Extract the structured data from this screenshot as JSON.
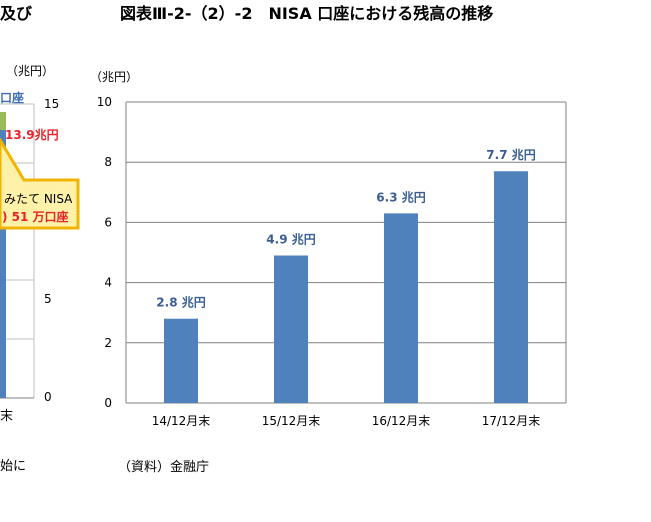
{
  "left_fragment": {
    "title_tail": "及び",
    "unit": "（兆円）",
    "legend_text": "口座",
    "y_ticks": [
      "15",
      "5",
      "0"
    ],
    "value_label": "13.9兆円",
    "callout_line1": "みたて NISA",
    "callout_line2": ") 51 万口座",
    "x_tick": "末",
    "note_tail": "始に",
    "colors": {
      "value_label": "#e8232a",
      "legend_text": "#3b6db3",
      "callout_fill": "#fff2a8",
      "callout_border": "#f2b400",
      "callout_text2": "#e8232a",
      "bar_green": "#9bbb59",
      "bar_blue": "#4f81bd"
    }
  },
  "header": {
    "title": "図表Ⅲ-2-（2）-2　NISA 口座における残高の推移"
  },
  "footer": {
    "source": "（資料）金融庁"
  },
  "chart_data": {
    "type": "bar",
    "title": "",
    "unit_label": "（兆円）",
    "categories": [
      "14/12月末",
      "15/12月末",
      "16/12月末",
      "17/12月末"
    ],
    "values": [
      2.8,
      4.9,
      6.3,
      7.7
    ],
    "data_labels": [
      "2.8 兆円",
      "4.9 兆円",
      "6.3 兆円",
      "7.7 兆円"
    ],
    "ylim": [
      0,
      10
    ],
    "y_ticks": [
      0,
      2,
      4,
      6,
      8,
      10
    ],
    "grid": true,
    "bar_color": "#4f81bd",
    "label_color": "#3b5f94"
  }
}
